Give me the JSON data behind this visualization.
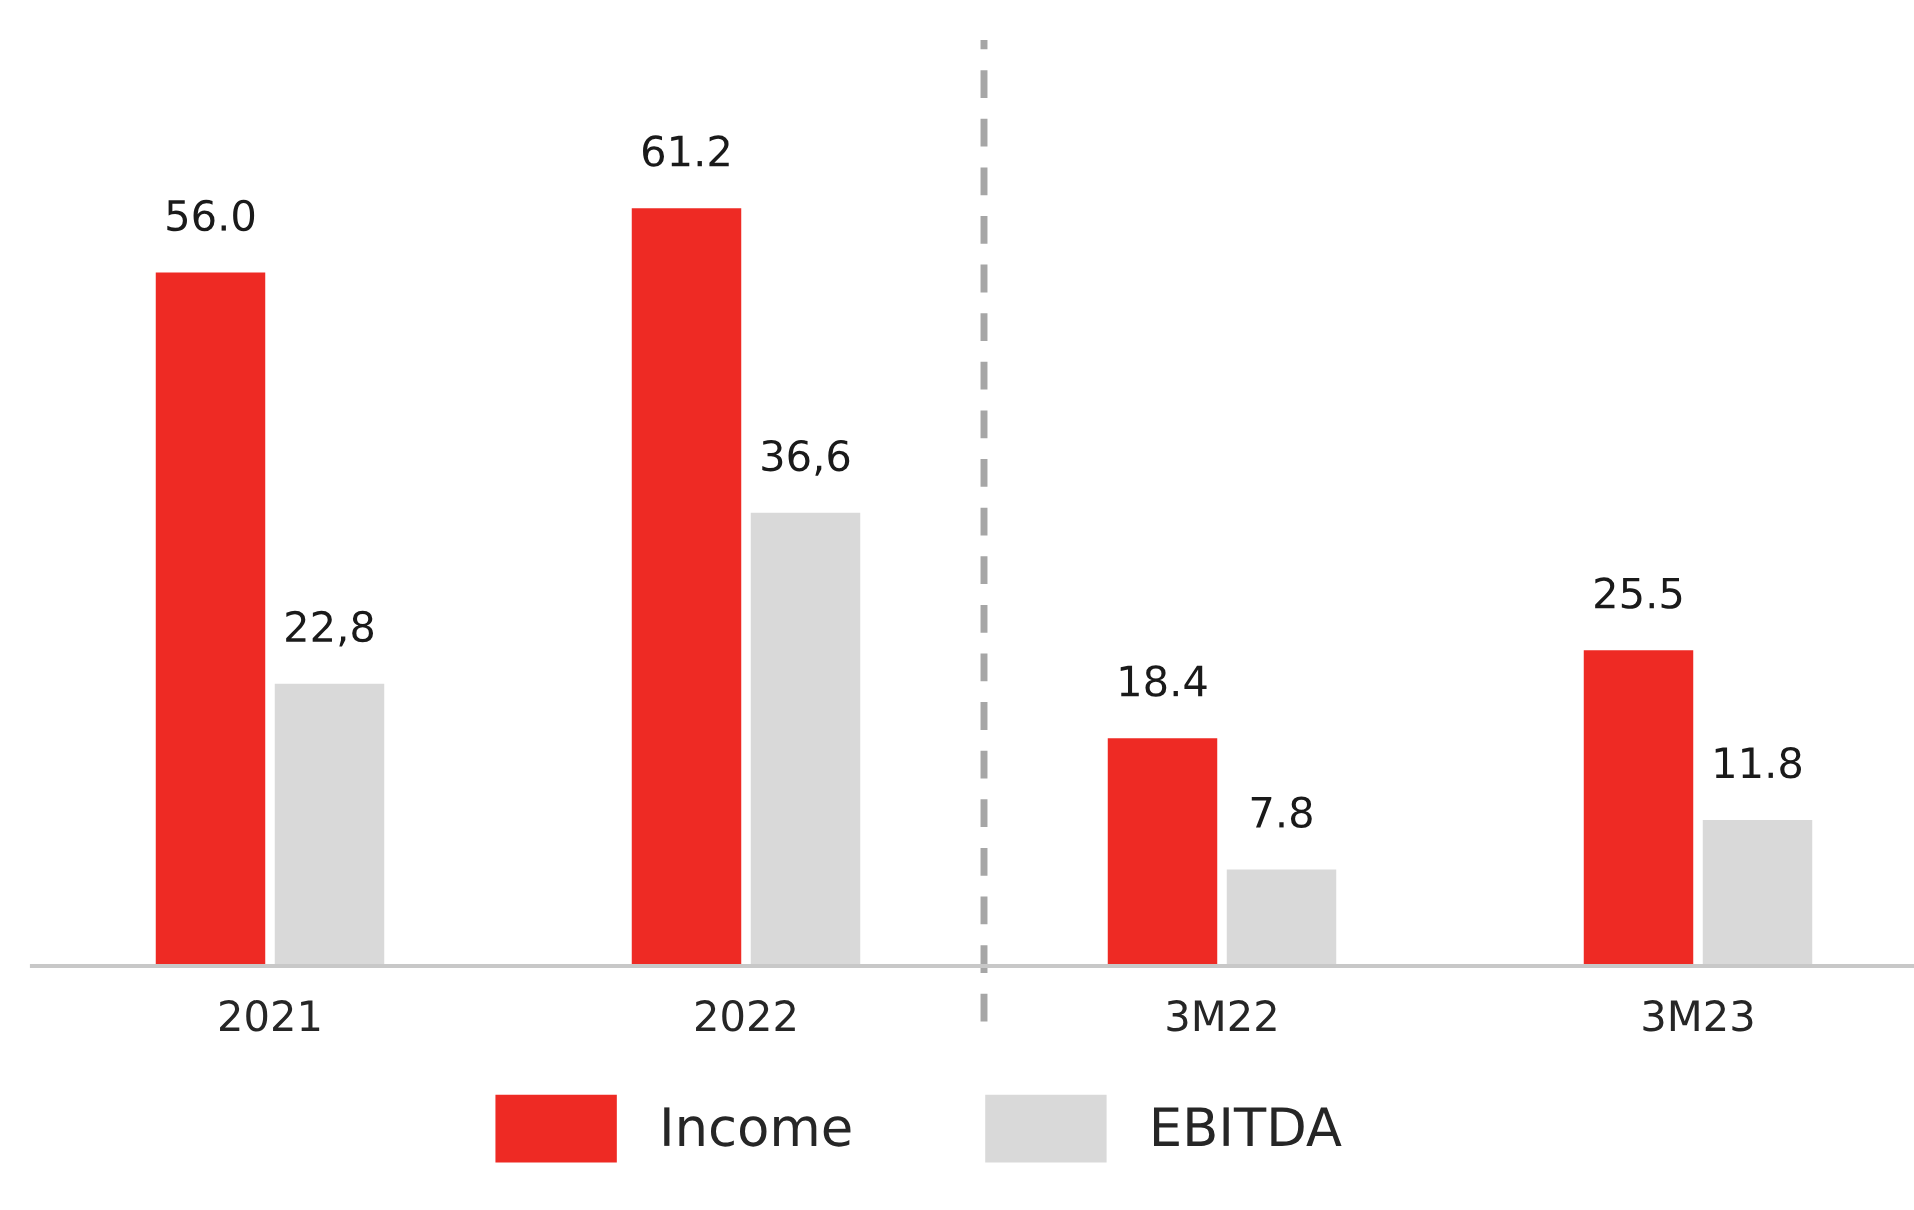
{
  "chart_data": {
    "type": "bar",
    "categories": [
      "2021",
      "2022",
      "3M22",
      "3M23"
    ],
    "series": [
      {
        "name": "Income",
        "color": "#ee2a24",
        "values": [
          56.0,
          61.2,
          18.4,
          25.5
        ],
        "value_labels": [
          "56.0",
          "61.2",
          "18.4",
          "25.5"
        ]
      },
      {
        "name": "EBITDA",
        "color": "#d9d9d9",
        "values": [
          22.8,
          36.6,
          7.8,
          11.8
        ],
        "value_labels": [
          "22,8",
          "36,6",
          "7.8",
          "11.8"
        ]
      }
    ],
    "legend": "bottom",
    "grid": false,
    "tick_labels": "x"
  }
}
